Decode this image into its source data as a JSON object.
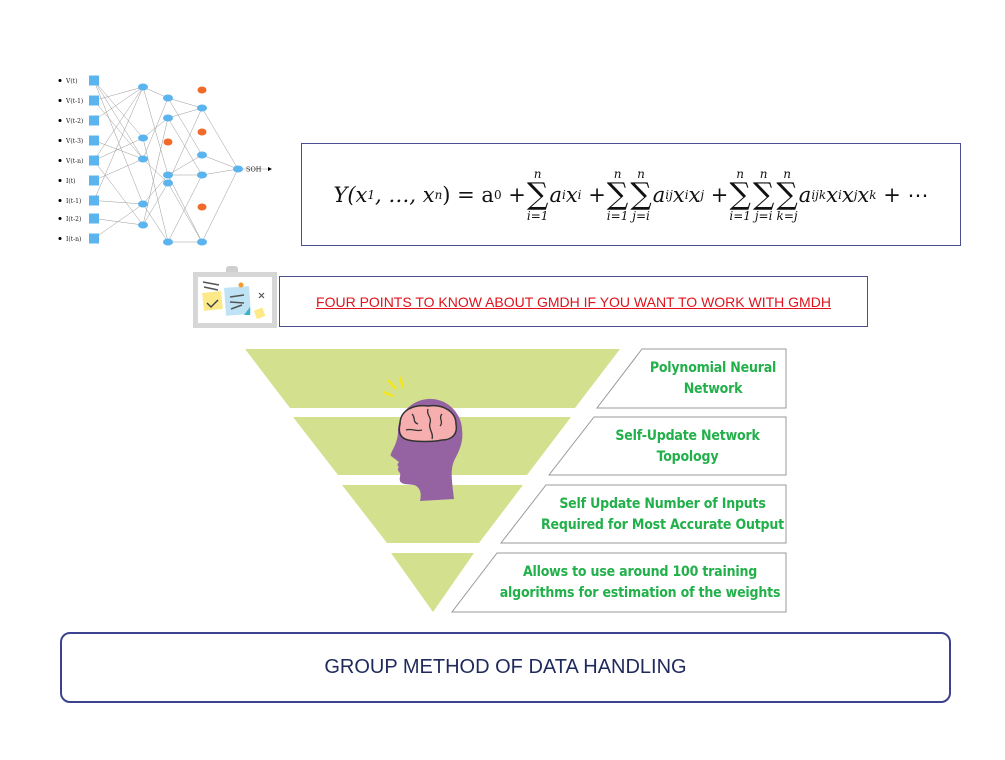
{
  "network": {
    "inputs": [
      "V(t)",
      "V(t-1)",
      "V(t-2)",
      "V(t-3)",
      "V(t-n)",
      "I(t)",
      "I(t-1)",
      "I(t-2)",
      "I(t-n)"
    ],
    "output": "SOH",
    "node_color": "#5bb4ee",
    "dropped_node_color": "#f06a2a"
  },
  "formula": {
    "lhs": "Y(x",
    "lhs_sub": "1",
    "lhs_rest": ", …, x",
    "lhs_sub_n": "n",
    "eq": ") = a",
    "a0_sub": "0",
    "plus": "+",
    "sum_top": "n",
    "sum_i": "i=1",
    "sum_j": "j=i",
    "sum_k": "k=j",
    "term1": "a",
    "term1_sub": "i",
    "term1_x": "x",
    "term1_xsub": "i",
    "term2": "a",
    "term2_sub": "ij",
    "term2_x": "x",
    "term2_xsub1": "i",
    "term2_xsub2": "j",
    "term3": "a",
    "term3_sub": "ijk",
    "term3_xsub1": "i",
    "term3_xsub2": "j",
    "term3_xsub3": "k",
    "ellipsis": "+ ⋯"
  },
  "link": {
    "text": "FOUR POINTS TO KNOW ABOUT GMDH IF YOU WANT TO WORK WITH GMDH",
    "color": "#e0121b"
  },
  "pyramid": {
    "color": "#d3e08e",
    "text_color": "#22b04a",
    "points": [
      [
        "Polynomial Neural",
        "Network"
      ],
      [
        "Self-Update Network",
        "Topology"
      ],
      [
        "Self Update Number of Inputs",
        "Required for Most Accurate Output"
      ],
      [
        "Allows to use around 100 training",
        "algorithms for estimation of the weights"
      ]
    ]
  },
  "title": "GROUP METHOD OF DATA HANDLING"
}
